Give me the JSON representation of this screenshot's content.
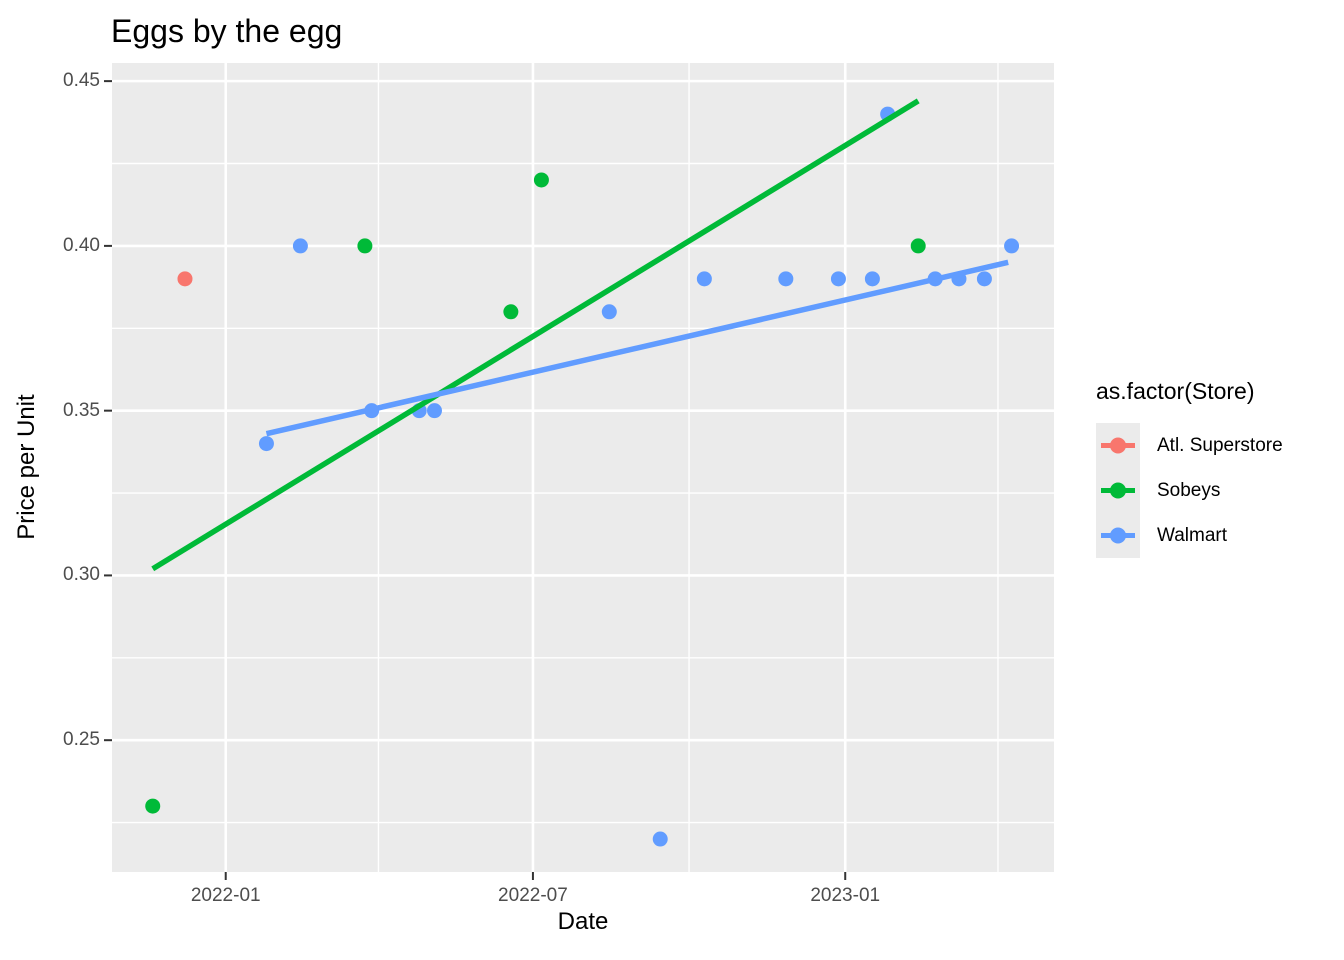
{
  "style": {
    "panel_bg": "#EBEBEB",
    "grid_color": "#FFFFFF",
    "tick_text_color": "#4D4D4D",
    "axis_tick_color": "#333333",
    "legend_key_bg": "#EBEBEB",
    "point_radius": 7.5,
    "trend_line_width": 5.5
  },
  "chart_data": {
    "type": "scatter",
    "title": "Eggs by the egg",
    "xlabel": "Date",
    "ylabel": "Price per Unit",
    "legend_title": "as.factor(Store)",
    "legend_position": "right",
    "grid": true,
    "x_axis": {
      "domain": [
        "2021-10-26",
        "2023-05-04"
      ],
      "ticks": [
        {
          "date": "2022-01-01",
          "label": "2022-01"
        },
        {
          "date": "2022-07-01",
          "label": "2022-07"
        },
        {
          "date": "2023-01-01",
          "label": "2023-01"
        }
      ],
      "minor": [
        "2022-04-01",
        "2022-10-01",
        "2023-04-01"
      ]
    },
    "y_axis": {
      "domain": [
        0.21,
        0.4555
      ],
      "ticks": [
        {
          "value": 0.25,
          "label": "0.25"
        },
        {
          "value": 0.3,
          "label": "0.30"
        },
        {
          "value": 0.35,
          "label": "0.35"
        },
        {
          "value": 0.4,
          "label": "0.40"
        },
        {
          "value": 0.45,
          "label": "0.45"
        }
      ],
      "minor": [
        0.225,
        0.275,
        0.325,
        0.375,
        0.425
      ]
    },
    "series": [
      {
        "name": "Atl. Superstore",
        "color": "#F8766D",
        "points": [
          {
            "date": "2021-12-08",
            "price": 0.39
          }
        ]
      },
      {
        "name": "Sobeys",
        "color": "#00BA38",
        "points": [
          {
            "date": "2021-11-19",
            "price": 0.23
          },
          {
            "date": "2022-03-24",
            "price": 0.4
          },
          {
            "date": "2022-06-18",
            "price": 0.38
          },
          {
            "date": "2022-07-06",
            "price": 0.42
          },
          {
            "date": "2023-02-13",
            "price": 0.4
          }
        ]
      },
      {
        "name": "Walmart",
        "color": "#619CFF",
        "points": [
          {
            "date": "2022-01-25",
            "price": 0.34
          },
          {
            "date": "2022-02-14",
            "price": 0.4
          },
          {
            "date": "2022-03-28",
            "price": 0.35
          },
          {
            "date": "2022-04-25",
            "price": 0.35
          },
          {
            "date": "2022-05-04",
            "price": 0.35
          },
          {
            "date": "2022-08-15",
            "price": 0.38
          },
          {
            "date": "2022-09-14",
            "price": 0.22
          },
          {
            "date": "2022-10-10",
            "price": 0.39
          },
          {
            "date": "2022-11-27",
            "price": 0.39
          },
          {
            "date": "2022-12-28",
            "price": 0.39
          },
          {
            "date": "2023-01-17",
            "price": 0.39
          },
          {
            "date": "2023-01-26",
            "price": 0.44
          },
          {
            "date": "2023-02-23",
            "price": 0.39
          },
          {
            "date": "2023-03-09",
            "price": 0.39
          },
          {
            "date": "2023-03-24",
            "price": 0.39
          },
          {
            "date": "2023-04-09",
            "price": 0.4
          }
        ]
      }
    ],
    "trend_lines": [
      {
        "store": "Sobeys",
        "color": "#00BA38",
        "start": {
          "date": "2021-11-19",
          "price": 0.302
        },
        "end": {
          "date": "2023-02-13",
          "price": 0.444
        }
      },
      {
        "store": "Walmart",
        "color": "#619CFF",
        "start": {
          "date": "2022-01-25",
          "price": 0.343
        },
        "end": {
          "date": "2023-04-07",
          "price": 0.395
        }
      }
    ]
  }
}
